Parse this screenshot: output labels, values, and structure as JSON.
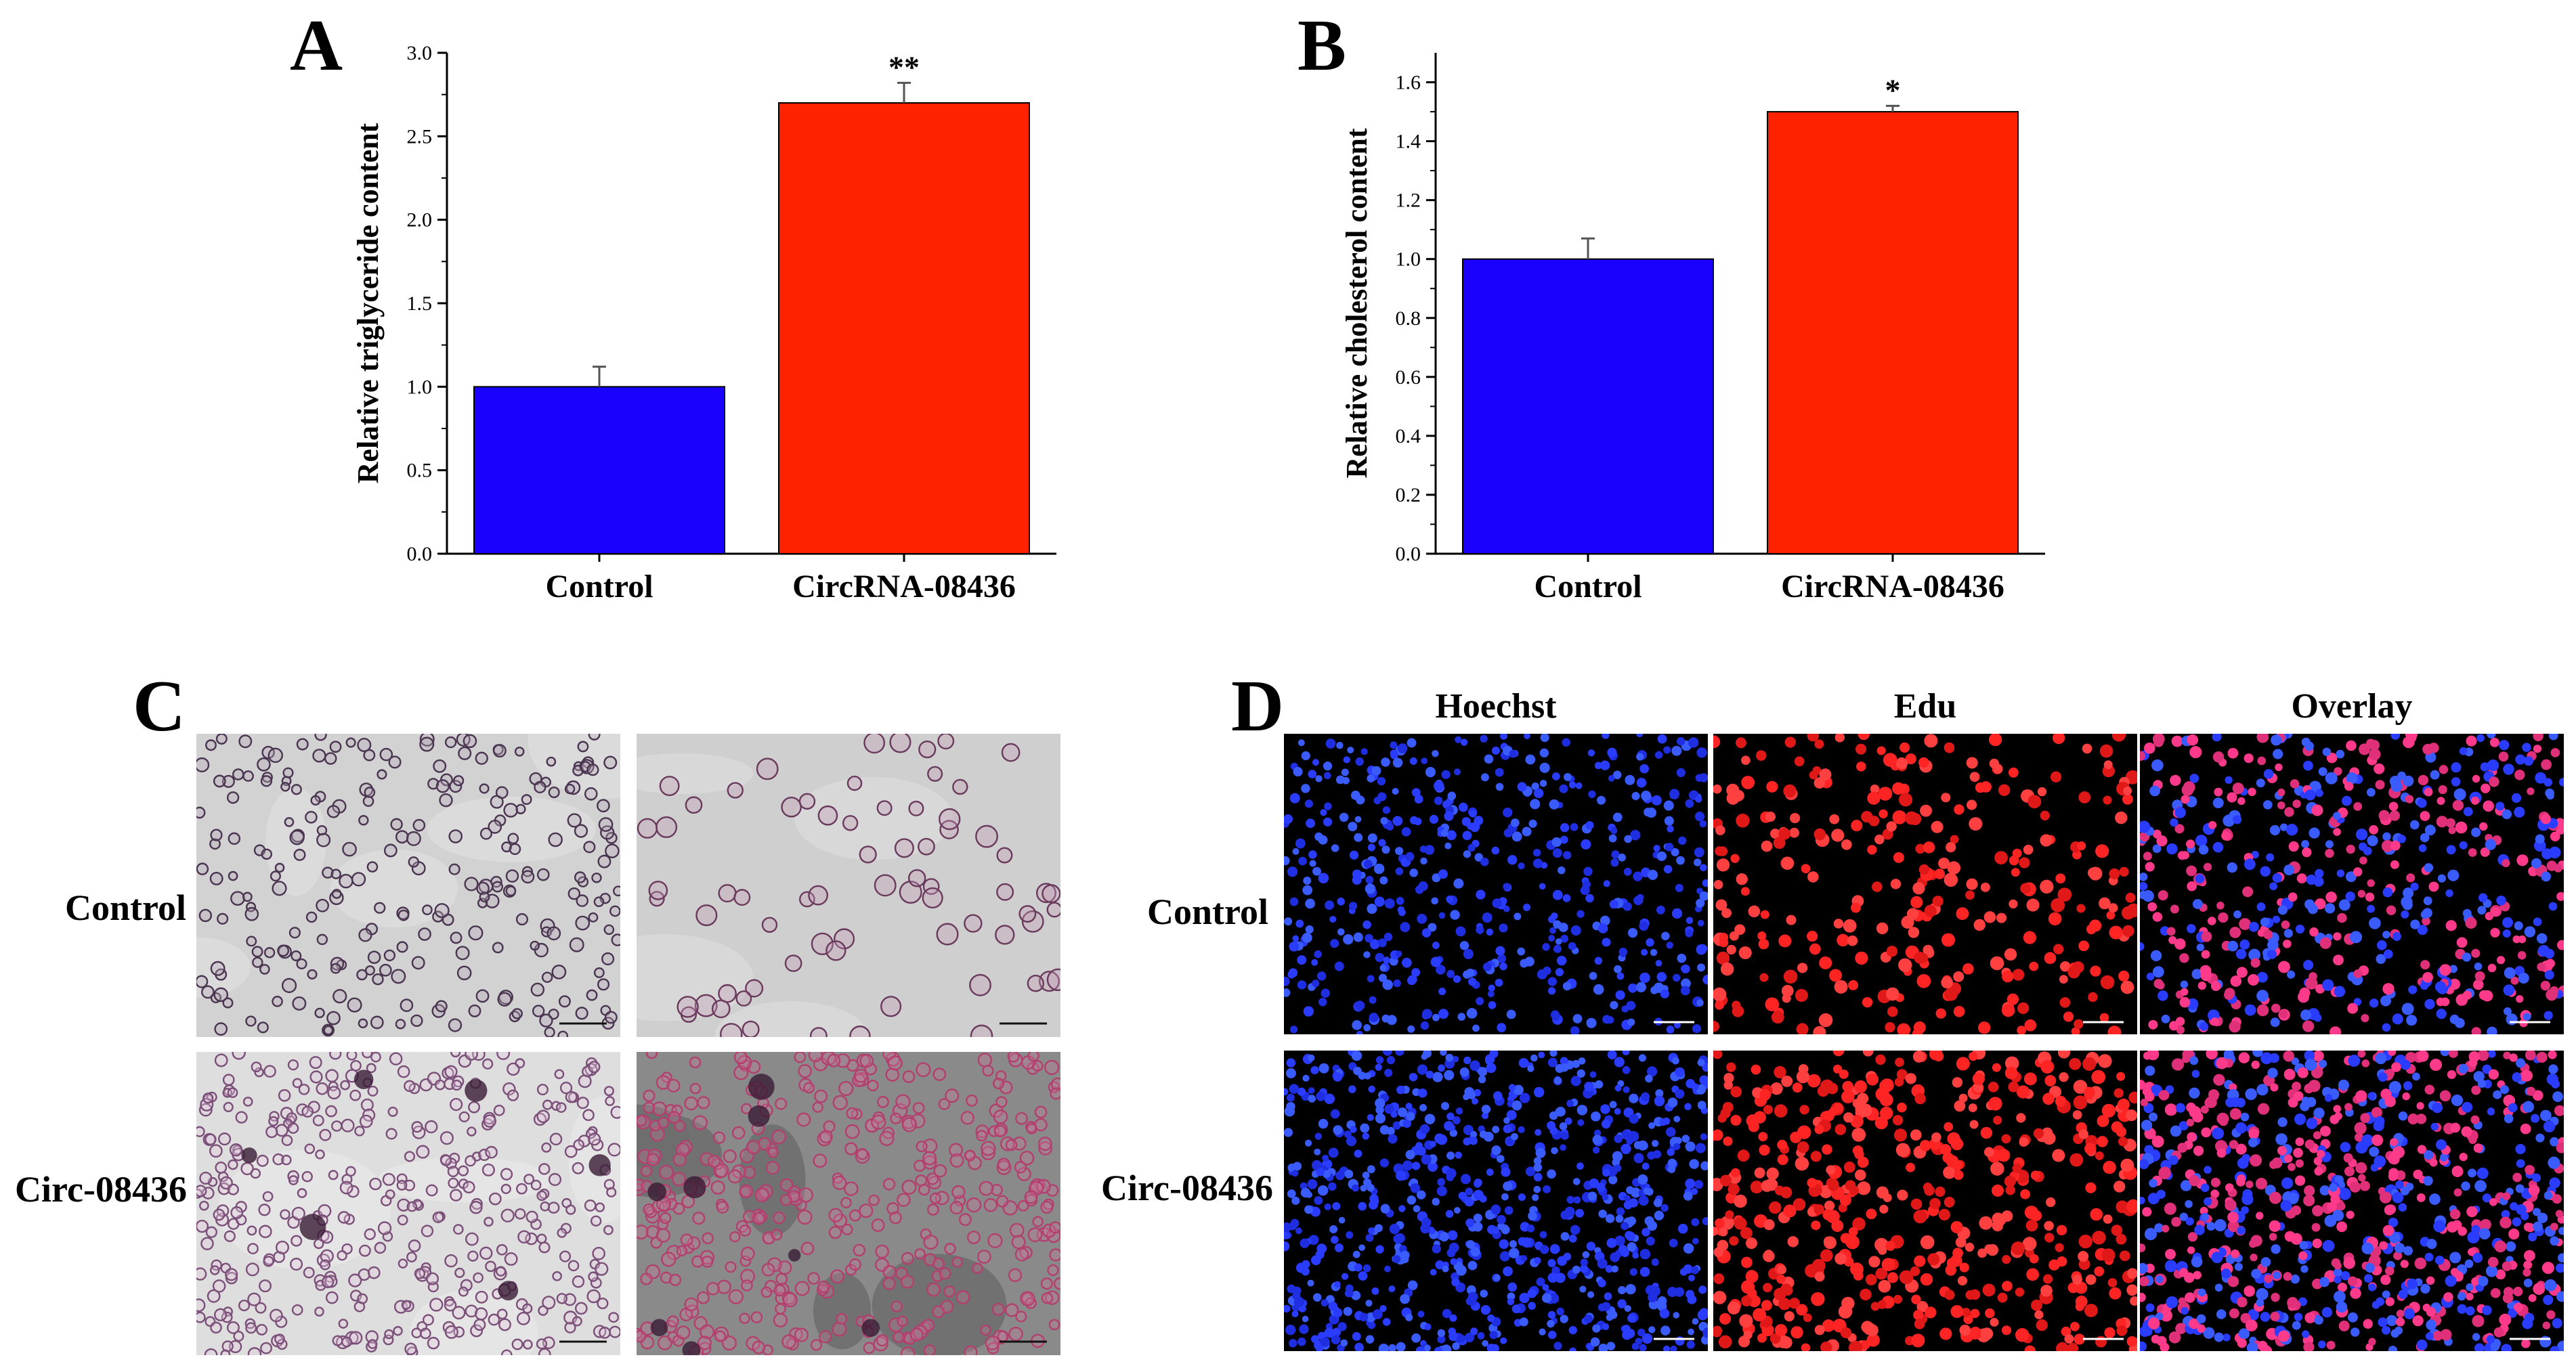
{
  "panels": {
    "a": {
      "letter": "A"
    },
    "b": {
      "letter": "B"
    },
    "c": {
      "letter": "C",
      "rows": [
        "Control",
        "Circ-08436"
      ]
    },
    "d": {
      "letter": "D",
      "columns": [
        "Hoechst",
        "Edu",
        "Overlay"
      ],
      "rows": [
        "Control",
        "Circ-08436"
      ]
    }
  },
  "chart_data": [
    {
      "type": "bar",
      "title": "",
      "xlabel": "",
      "ylabel": "Relative triglyceride content",
      "categories": [
        "Control",
        "CircRNA-08436"
      ],
      "values": [
        1.0,
        2.7
      ],
      "errors": [
        0.12,
        0.12
      ],
      "colors": [
        "#1a00ff",
        "#ff2200"
      ],
      "significance": [
        "",
        "**"
      ],
      "ylim": [
        0,
        3.0
      ],
      "yticks": [
        "0.0",
        "0.5",
        "1.0",
        "1.5",
        "2.0",
        "2.5",
        "3.0"
      ],
      "grid": false
    },
    {
      "type": "bar",
      "title": "",
      "xlabel": "",
      "ylabel": "Relative cholesterol content",
      "categories": [
        "Control",
        "CircRNA-08436"
      ],
      "values": [
        1.0,
        1.5
      ],
      "errors": [
        0.07,
        0.02
      ],
      "colors": [
        "#1a00ff",
        "#ff2200"
      ],
      "significance": [
        "",
        "*"
      ],
      "ylim": [
        0,
        1.7
      ],
      "yticks": [
        "0.0",
        "0.2",
        "0.4",
        "0.6",
        "0.8",
        "1.0",
        "1.2",
        "1.4",
        "1.6"
      ],
      "grid": false
    }
  ],
  "colors": {
    "oil_red_background": "#cfcfcf",
    "oil_red_cell": "#7d4a6e",
    "fluor_background": "#000000",
    "hoechst": "#2a3cff",
    "edu": "#ff2424",
    "overlay_mix": "#e0307a"
  }
}
